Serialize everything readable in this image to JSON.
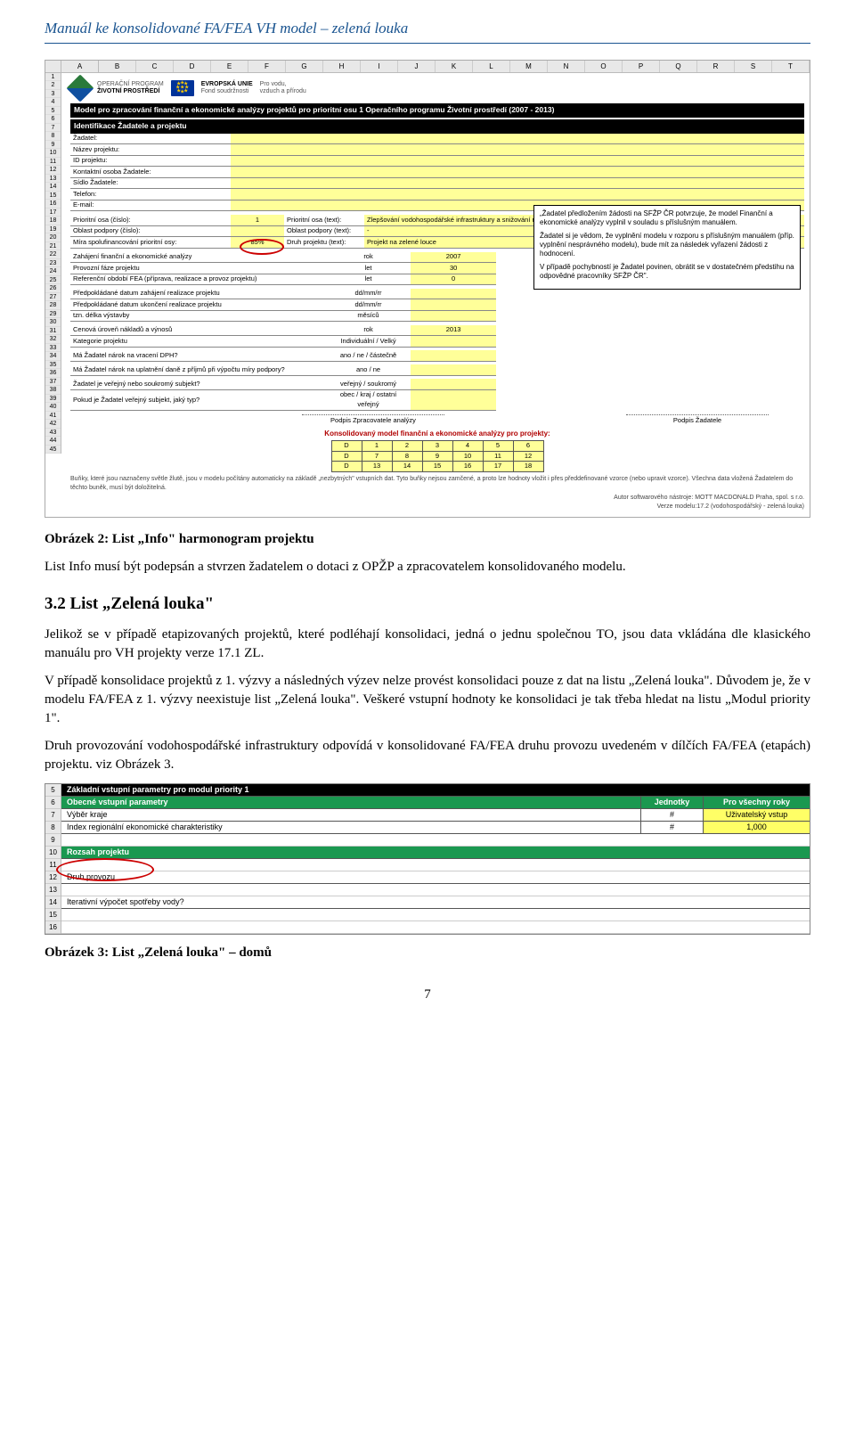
{
  "header": "Manuál ke konsolidované FA/FEA VH model – zelená louka",
  "excel1": {
    "cols": [
      "A",
      "B",
      "C",
      "D",
      "E",
      "F",
      "G",
      "H",
      "I",
      "J",
      "K",
      "L",
      "M",
      "N",
      "O",
      "P",
      "Q",
      "R",
      "S",
      "T"
    ],
    "rowCount": 45,
    "logoText1": "OPERAČNÍ PROGRAM",
    "logoText1b": "ŽIVOTNÍ PROSTŘEDÍ",
    "logoText2": "EVROPSKÁ UNIE",
    "logoText2b": "Fond soudržnosti",
    "logoText3": "Pro vodu,",
    "logoText3b": "vzduch a přírodu",
    "titleBar": "Model pro zpracování finanční a ekonomické analýzy projektů pro prioritní osu 1 Operačního programu Životní prostředí (2007 - 2013)",
    "identBar": "Identifikace Žadatele a projektu",
    "rowsA": [
      "Žadatel:",
      "Název projektu:",
      "ID projektu:",
      "Kontaktní osoba Žadatele:",
      "Sídlo Žadatele:",
      "Telefon:",
      "E-mail:"
    ],
    "rowsB": [
      {
        "l": "Prioritní osa (číslo):",
        "m": "1",
        "l2": "Prioritní osa (text):",
        "r": "Zlepšování vodohospodářské infrastruktury a snižování rizika povodní"
      },
      {
        "l": "Oblast podpory (číslo):",
        "m": "",
        "l2": "Oblast podpory (text):",
        "r": "-"
      },
      {
        "l": "Míra spolufinancování prioritní osy:",
        "m": "85%",
        "l2": "Druh projektu (text):",
        "r": "Projekt na zelené louce"
      }
    ],
    "rowsC": [
      {
        "l": "Zahájení finanční a ekonomické analýzy",
        "u": "rok",
        "v": "2007"
      },
      {
        "l": "Provozní fáze projektu",
        "u": "let",
        "v": "30"
      },
      {
        "l": "Referenční období FEA (příprava, realizace a provoz projektu)",
        "u": "let",
        "v": "0"
      },
      {
        "l": "",
        "u": "",
        "v": ""
      },
      {
        "l": "Předpokládané datum zahájení realizace projektu",
        "u": "dd/mm/rr",
        "v": ""
      },
      {
        "l": "Předpokládané datum ukončení realizace projektu",
        "u": "dd/mm/rr",
        "v": ""
      },
      {
        "l": "tzn. délka výstavby",
        "u": "měsíců",
        "v": ""
      },
      {
        "l": "",
        "u": "",
        "v": ""
      },
      {
        "l": "Cenová úroveň nákladů a výnosů",
        "u": "rok",
        "v": "2013"
      },
      {
        "l": "Kategorie projektu",
        "u": "Individuální / Velký",
        "v": ""
      },
      {
        "l": "",
        "u": "",
        "v": ""
      },
      {
        "l": "Má Žadatel nárok na vracení DPH?",
        "u": "ano / ne / částečně",
        "v": ""
      },
      {
        "l": "",
        "u": "",
        "v": ""
      },
      {
        "l": "Má Žadatel nárok na uplatnění daně z příjmů při výpočtu míry podpory?",
        "u": "ano / ne",
        "v": ""
      },
      {
        "l": "",
        "u": "",
        "v": ""
      },
      {
        "l": "Žadatel je veřejný nebo soukromý subjekt?",
        "u": "veřejný / soukromý",
        "v": ""
      },
      {
        "l": "Pokud je Žadatel veřejný subjekt, jaký typ?",
        "u": "obec / kraj / ostatní veřejný",
        "v": ""
      }
    ],
    "infoBox": {
      "p1": "„Žadatel předložením žádosti na SFŽP ČR potvrzuje, že model Finanční a ekonomické analýzy vyplnil v souladu s příslušným manuálem.",
      "p2": "Žadatel si je vědom, že vyplnění modelu v rozporu s příslušným manuálem (příp. vyplnění nesprávného modelu), bude mít za následek vyřazení žádosti z hodnocení.",
      "p3": "V případě pochybností je Žadatel povinen, obrátit se v dostatečném předstihu na odpovědné pracovníky SFŽP ČR\"."
    },
    "sig1": "Podpis Zpracovatele analýzy",
    "sig2": "Podpis Žadatele",
    "konsolTitle": "Konsolidovaný model finanční a ekonomické analýzy pro projekty:",
    "grid": [
      [
        "D",
        "1",
        "2",
        "3",
        "4",
        "5",
        "6"
      ],
      [
        "D",
        "7",
        "8",
        "9",
        "10",
        "11",
        "12"
      ],
      [
        "D",
        "13",
        "14",
        "15",
        "16",
        "17",
        "18"
      ]
    ],
    "note": "Buňky, které jsou naznačeny světle žlutě, jsou v modelu počítány automaticky na základě „nezbytných\" vstupních dat. Tyto buňky nejsou zamčené, a proto lze hodnoty vložit i přes předdefinované vzorce (nebo upravit vzorce). Všechna data vložená Žadatelem do těchto buněk, musí být doložitelná.",
    "autor": "Autor softwarového nástroje: MOTT MACDONALD Praha, spol. s r.o.",
    "verze": "Verze modelu:17.2 (vodohospodářský - zelená louka)"
  },
  "caption1": "Obrázek 2: List „Info\" harmonogram projektu",
  "para1": "List Info musí být podepsán a stvrzen žadatelem o dotaci z OPŽP a zpracovatelem konsolidovaného modelu.",
  "sect": "3.2 List „Zelená louka\"",
  "para2": "Jelikož se v případě etapizovaných projektů, které podléhají konsolidaci, jedná o jednu společnou TO, jsou data vkládána dle klasického manuálu pro VH projekty verze 17.1 ZL.",
  "para3": "V případě konsolidace projektů z 1. výzvy a následných výzev nelze provést konsolidaci pouze z dat na listu „Zelená louka\". Důvodem je, že v modelu FA/FEA z 1. výzvy neexistuje list „Zelená louka\". Veškeré vstupní hodnoty ke konsolidaci je tak třeba hledat na listu „Modul priority 1\".",
  "para4": "Druh provozování vodohospodářské infrastruktury odpovídá v konsolidované FA/FEA druhu provozu uvedeném v dílčích FA/FEA (etapách) projektu. viz Obrázek 3.",
  "excel2": {
    "rowNums": [
      "5",
      "6",
      "7",
      "8",
      "9",
      "10",
      "11",
      "12",
      "13",
      "14",
      "15",
      "16"
    ],
    "rows": [
      {
        "cls": "black",
        "c1": "Základní vstupní parametry pro modul priority 1",
        "c2": "",
        "c3": ""
      },
      {
        "cls": "green",
        "c1": "Obecné vstupní parametry",
        "c2": "Jednotky",
        "c3": "Pro všechny roky"
      },
      {
        "cls": "",
        "c1": "Výběr kraje",
        "c2": "#",
        "c3": "Uživatelský vstup",
        "c3y": true
      },
      {
        "cls": "",
        "c1": "Index regionální ekonomické charakteristiky",
        "c2": "#",
        "c3": "1,000",
        "c3y": true
      },
      {
        "cls": "blank",
        "c1": "",
        "c2": "",
        "c3": ""
      },
      {
        "cls": "green",
        "c1": "Rozsah projektu",
        "c2": "",
        "c3": ""
      },
      {
        "cls": "blank",
        "c1": "",
        "c2": "",
        "c3": ""
      },
      {
        "cls": "",
        "c1": "Druh provozu",
        "c2": "",
        "c3": ""
      },
      {
        "cls": "blank",
        "c1": "",
        "c2": "",
        "c3": ""
      },
      {
        "cls": "",
        "c1": "Iterativní výpočet spotřeby vody?",
        "c2": "",
        "c3": ""
      },
      {
        "cls": "blank",
        "c1": "",
        "c2": "",
        "c3": ""
      },
      {
        "cls": "blank",
        "c1": "",
        "c2": "",
        "c3": ""
      }
    ]
  },
  "caption2": "Obrázek 3: List „Zelená louka\" – domů",
  "pageNum": "7"
}
